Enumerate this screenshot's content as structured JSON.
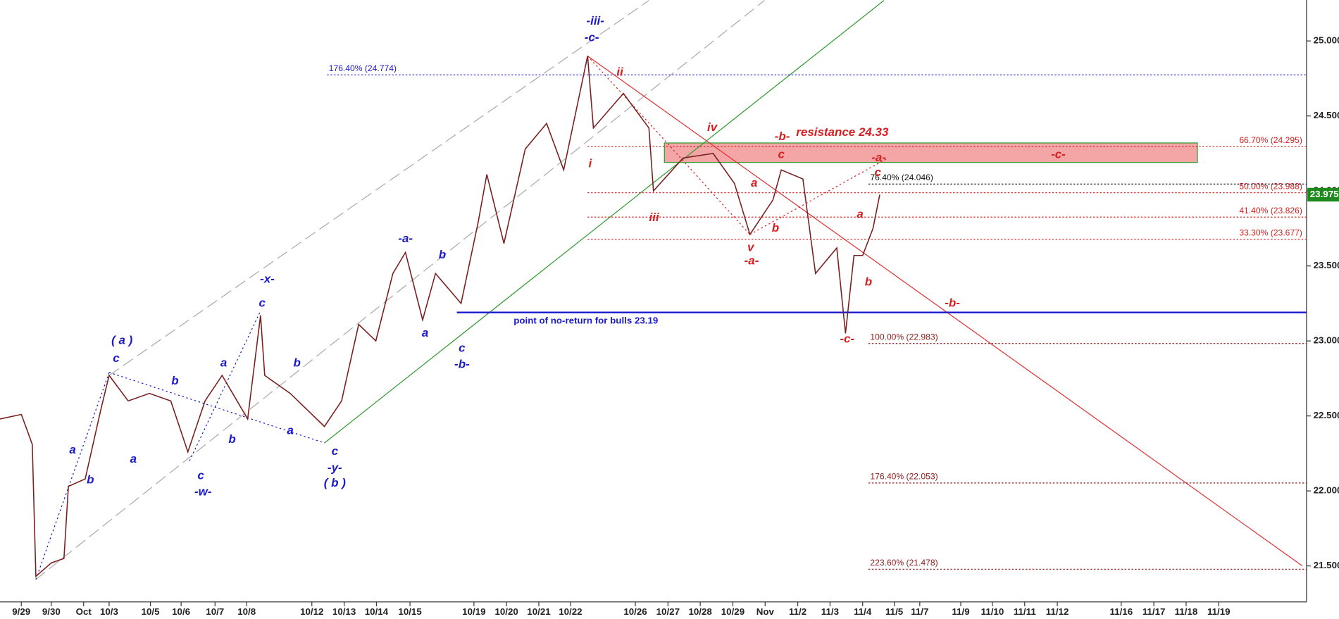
{
  "chart_data": {
    "type": "line",
    "xlim": [
      -0.66,
      39.81
    ],
    "ylim": [
      21.26,
      25.273
    ],
    "xticks": [
      {
        "value": 0,
        "label": "9/29"
      },
      {
        "value": 0.93,
        "label": "9/30"
      },
      {
        "value": 1.93,
        "label": "Oct"
      },
      {
        "value": 2.72,
        "label": "10/3"
      },
      {
        "value": 4.0,
        "label": "10/5"
      },
      {
        "value": 4.95,
        "label": "10/6"
      },
      {
        "value": 6.0,
        "label": "10/7"
      },
      {
        "value": 6.98,
        "label": "10/8"
      },
      {
        "value": 9.0,
        "label": "10/12"
      },
      {
        "value": 10.0,
        "label": "10/13"
      },
      {
        "value": 11.0,
        "label": "10/14"
      },
      {
        "value": 12.04,
        "label": "10/15"
      },
      {
        "value": 14.02,
        "label": "10/19"
      },
      {
        "value": 15.03,
        "label": "10/20"
      },
      {
        "value": 16.03,
        "label": "10/21"
      },
      {
        "value": 17.01,
        "label": "10/22"
      },
      {
        "value": 19.02,
        "label": "10/26"
      },
      {
        "value": 20.03,
        "label": "10/27"
      },
      {
        "value": 21.03,
        "label": "10/28"
      },
      {
        "value": 22.04,
        "label": "10/29"
      },
      {
        "value": 23.04,
        "label": "Nov"
      },
      {
        "value": 24.05,
        "label": "11/2"
      },
      {
        "value": 25.05,
        "label": "11/3"
      },
      {
        "value": 26.06,
        "label": "11/4"
      },
      {
        "value": 27.04,
        "label": "11/5"
      },
      {
        "value": 27.83,
        "label": "11/7"
      },
      {
        "value": 29.1,
        "label": "11/9"
      },
      {
        "value": 30.08,
        "label": "11/10"
      },
      {
        "value": 31.08,
        "label": "11/11"
      },
      {
        "value": 32.09,
        "label": "11/12"
      },
      {
        "value": 34.07,
        "label": "11/16"
      },
      {
        "value": 35.08,
        "label": "11/17"
      },
      {
        "value": 36.08,
        "label": "11/18"
      },
      {
        "value": 37.09,
        "label": "11/19"
      }
    ],
    "yticks": [
      {
        "value": 21.5,
        "label": "21.500"
      },
      {
        "value": 22,
        "label": "22.000"
      },
      {
        "value": 22.5,
        "label": "22.500"
      },
      {
        "value": 23,
        "label": "23.000"
      },
      {
        "value": 23.5,
        "label": "23.500"
      },
      {
        "value": 24,
        "label": "24.000"
      },
      {
        "value": 24.5,
        "label": "24.500"
      },
      {
        "value": 25,
        "label": "25.000"
      }
    ],
    "series": [
      {
        "color": "#7a1f1f",
        "x": [
          -0.66,
          0,
          0.34,
          0.45,
          0.93,
          1.32,
          1.46,
          1.98,
          2.46,
          2.72,
          3.31,
          3.97,
          4.63,
          5.16,
          5.69,
          6.22,
          7.01,
          7.41,
          7.54,
          8.33,
          9.39,
          9.92,
          10.45,
          10.98,
          11.51,
          11.9,
          12.43,
          12.83,
          13.62,
          14.15,
          14.42,
          14.95,
          15.61,
          16.27,
          16.8,
          17.54,
          17.72,
          18.65,
          19.44,
          19.58,
          20.5,
          21.43,
          22.09,
          22.57,
          23.28,
          23.54,
          24.21,
          24.6,
          25.26,
          25.53,
          25.79,
          26.06,
          26.38,
          26.59
        ],
        "values": [
          22.48,
          22.51,
          22.31,
          21.43,
          21.52,
          21.55,
          22.03,
          22.08,
          22.54,
          22.77,
          22.6,
          22.65,
          22.6,
          22.26,
          22.6,
          22.77,
          22.48,
          23.17,
          22.77,
          22.65,
          22.43,
          22.6,
          23.11,
          23.0,
          23.45,
          23.59,
          23.14,
          23.45,
          23.25,
          23.79,
          24.11,
          23.65,
          24.28,
          24.45,
          24.14,
          24.9,
          24.42,
          24.65,
          24.42,
          24.0,
          24.22,
          24.25,
          24.05,
          23.71,
          23.94,
          24.14,
          24.08,
          23.45,
          23.62,
          23.05,
          23.57,
          23.57,
          23.75,
          23.975
        ]
      }
    ],
    "last_value": 23.975,
    "last_color": "#1e8a1e",
    "levels": [
      {
        "label": "176.40% (24.774)",
        "value": 24.774,
        "start": 9.47,
        "color": "#1a1acc",
        "side": "left"
      },
      {
        "label": "66.70% (24.295)",
        "value": 24.295,
        "start": 17.54,
        "color": "#d42020",
        "side": "right"
      },
      {
        "label": "50.00% (23.988)",
        "value": 23.988,
        "start": 17.54,
        "color": "#d42020",
        "side": "right"
      },
      {
        "label": "41.40% (23.826)",
        "value": 23.826,
        "start": 17.54,
        "color": "#d42020",
        "side": "right"
      },
      {
        "label": "33.30% (23.677)",
        "value": 23.677,
        "start": 17.54,
        "color": "#d42020",
        "side": "right"
      },
      {
        "label": "76.40% (24.046)",
        "value": 24.046,
        "start": 26.24,
        "color": "#111111",
        "side": "left"
      },
      {
        "label": "100.00% (22.983)",
        "value": 22.983,
        "start": 26.24,
        "color": "#8b1a1a",
        "side": "left"
      },
      {
        "label": "176.40% (22.053)",
        "value": 22.053,
        "start": 26.24,
        "color": "#8b1a1a",
        "side": "left"
      },
      {
        "label": "223.60% (21.478)",
        "value": 21.478,
        "start": 26.24,
        "color": "#8b1a1a",
        "side": "left"
      }
    ],
    "support": {
      "label": "point of no-return for bulls 23.19",
      "value": 23.19,
      "start": 13.49,
      "label_x": 15.25,
      "color": "#1a1acc"
    },
    "zone": {
      "label": "resistance 24.33",
      "top": 24.32,
      "bottom": 24.19,
      "start": 19.92,
      "end": 36.43,
      "label_x": 24.0,
      "color": "#f4a6a6"
    },
    "trendlines": [
      {
        "from": [
          9.39,
          22.32
        ],
        "to": [
          26.72,
          25.27
        ],
        "color": "#2e9a2e",
        "style": "solid"
      },
      {
        "from": [
          2.72,
          22.77
        ],
        "to": [
          19.44,
          25.27
        ],
        "color": "#aaaaaa",
        "style": "dashed"
      },
      {
        "from": [
          0.45,
          21.41
        ],
        "to": [
          23.02,
          25.27
        ],
        "color": "#aaaaaa",
        "style": "dashed"
      },
      {
        "from": [
          17.54,
          24.9
        ],
        "to": [
          39.68,
          21.5
        ],
        "color": "#e03030",
        "style": "solid"
      },
      {
        "from": [
          0.45,
          21.41
        ],
        "to": [
          2.72,
          22.79
        ],
        "color": "#1a1acc",
        "style": "dotted"
      },
      {
        "from": [
          2.72,
          22.79
        ],
        "to": [
          9.39,
          22.32
        ],
        "color": "#1a1acc",
        "style": "dotted"
      },
      {
        "from": [
          5.21,
          22.2
        ],
        "to": [
          7.41,
          23.2
        ],
        "color": "#1a1acc",
        "style": "dotted"
      },
      {
        "from": [
          17.54,
          24.9
        ],
        "to": [
          19.58,
          24.42
        ],
        "color": "#d42020",
        "style": "dotted"
      },
      {
        "from": [
          19.58,
          24.42
        ],
        "to": [
          22.57,
          23.71
        ],
        "color": "#d42020",
        "style": "dotted"
      },
      {
        "from": [
          22.57,
          23.71
        ],
        "to": [
          26.85,
          24.22
        ],
        "color": "#d42020",
        "style": "dotted"
      }
    ],
    "annotations": [
      {
        "text": "-iii-",
        "x": 17.78,
        "y": 25.13,
        "color": "#1a1acc"
      },
      {
        "text": "-c-",
        "x": 17.67,
        "y": 25.02,
        "color": "#1a1acc"
      },
      {
        "text": "( a )",
        "x": 3.12,
        "y": 23.0,
        "color": "#1a1acc"
      },
      {
        "text": "c",
        "x": 2.94,
        "y": 22.88,
        "color": "#1a1acc"
      },
      {
        "text": "-x-",
        "x": 7.62,
        "y": 23.41,
        "color": "#1a1acc"
      },
      {
        "text": "c",
        "x": 7.46,
        "y": 23.25,
        "color": "#1a1acc"
      },
      {
        "text": "-a-",
        "x": 11.9,
        "y": 23.68,
        "color": "#1a1acc"
      },
      {
        "text": "b",
        "x": 13.04,
        "y": 23.57,
        "color": "#1a1acc"
      },
      {
        "text": "a",
        "x": 12.51,
        "y": 23.05,
        "color": "#1a1acc"
      },
      {
        "text": "c",
        "x": 13.65,
        "y": 22.95,
        "color": "#1a1acc"
      },
      {
        "text": "-b-",
        "x": 13.65,
        "y": 22.84,
        "color": "#1a1acc"
      },
      {
        "text": "a",
        "x": 6.27,
        "y": 22.85,
        "color": "#1a1acc"
      },
      {
        "text": "b",
        "x": 8.54,
        "y": 22.85,
        "color": "#1a1acc"
      },
      {
        "text": "a",
        "x": 8.33,
        "y": 22.4,
        "color": "#1a1acc"
      },
      {
        "text": "b",
        "x": 6.53,
        "y": 22.34,
        "color": "#1a1acc"
      },
      {
        "text": "c",
        "x": 5.56,
        "y": 22.1,
        "color": "#1a1acc"
      },
      {
        "text": "-w-",
        "x": 5.63,
        "y": 21.99,
        "color": "#1a1acc"
      },
      {
        "text": "b",
        "x": 4.76,
        "y": 22.73,
        "color": "#1a1acc"
      },
      {
        "text": "a",
        "x": 3.47,
        "y": 22.21,
        "color": "#1a1acc"
      },
      {
        "text": "a",
        "x": 1.59,
        "y": 22.27,
        "color": "#1a1acc"
      },
      {
        "text": "b",
        "x": 2.14,
        "y": 22.07,
        "color": "#1a1acc"
      },
      {
        "text": "c",
        "x": 9.71,
        "y": 22.26,
        "color": "#1a1acc"
      },
      {
        "text": "-y-",
        "x": 9.71,
        "y": 22.15,
        "color": "#1a1acc"
      },
      {
        "text": "( b )",
        "x": 9.71,
        "y": 22.05,
        "color": "#1a1acc"
      },
      {
        "text": "ii",
        "x": 18.54,
        "y": 24.79,
        "color": "#d42020"
      },
      {
        "text": "i",
        "x": 17.62,
        "y": 24.18,
        "color": "#d42020"
      },
      {
        "text": "iv",
        "x": 21.4,
        "y": 24.42,
        "color": "#d42020"
      },
      {
        "text": "iii",
        "x": 19.6,
        "y": 23.82,
        "color": "#d42020"
      },
      {
        "text": "-b-",
        "x": 23.57,
        "y": 24.36,
        "color": "#d42020"
      },
      {
        "text": "c",
        "x": 23.54,
        "y": 24.24,
        "color": "#d42020"
      },
      {
        "text": "a",
        "x": 22.7,
        "y": 24.05,
        "color": "#d42020"
      },
      {
        "text": "b",
        "x": 23.36,
        "y": 23.75,
        "color": "#d42020"
      },
      {
        "text": "v",
        "x": 22.59,
        "y": 23.62,
        "color": "#d42020"
      },
      {
        "text": "-a-",
        "x": 22.62,
        "y": 23.53,
        "color": "#d42020"
      },
      {
        "text": "-a-",
        "x": 26.56,
        "y": 24.22,
        "color": "#d42020"
      },
      {
        "text": "c",
        "x": 26.53,
        "y": 24.12,
        "color": "#d42020"
      },
      {
        "text": "-c-",
        "x": 32.12,
        "y": 24.24,
        "color": "#d42020"
      },
      {
        "text": "a",
        "x": 25.98,
        "y": 23.84,
        "color": "#d42020"
      },
      {
        "text": "b",
        "x": 26.24,
        "y": 23.39,
        "color": "#d42020"
      },
      {
        "text": "-c-",
        "x": 25.58,
        "y": 23.01,
        "color": "#d42020"
      },
      {
        "text": "-b-",
        "x": 28.84,
        "y": 23.25,
        "color": "#d42020"
      }
    ]
  }
}
